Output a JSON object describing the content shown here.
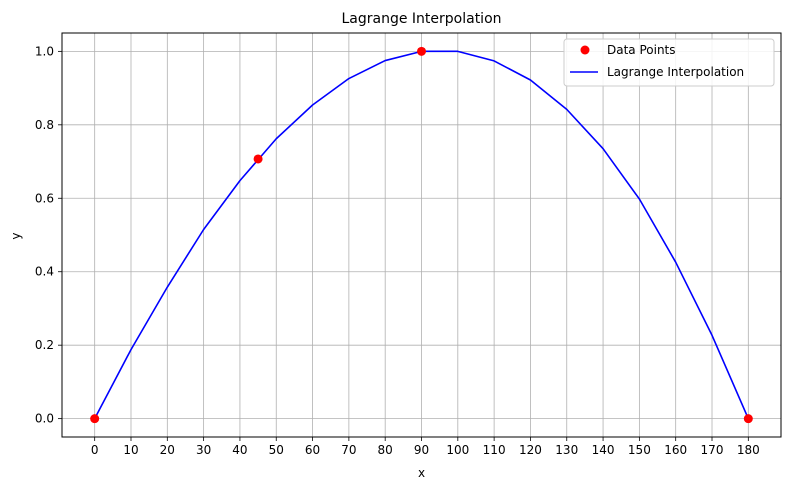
{
  "chart_data": {
    "type": "line",
    "title": "Lagrange Interpolation",
    "xlabel": "x",
    "ylabel": "y",
    "xlim": [
      -9,
      189
    ],
    "ylim": [
      -0.05,
      1.05
    ],
    "x_ticks": [
      0,
      10,
      20,
      30,
      40,
      50,
      60,
      70,
      80,
      90,
      100,
      110,
      120,
      130,
      140,
      150,
      160,
      170,
      180
    ],
    "y_ticks": [
      0.0,
      0.2,
      0.4,
      0.6,
      0.8,
      1.0
    ],
    "y_tick_labels": [
      "0.0",
      "0.2",
      "0.4",
      "0.6",
      "0.8",
      "1.0"
    ],
    "grid": true,
    "legend_position": "top-right",
    "series": [
      {
        "name": "Data Points",
        "kind": "scatter",
        "color": "#ff0000",
        "x": [
          0,
          45,
          90,
          180
        ],
        "y": [
          0.0,
          0.7071,
          1.0,
          0.0
        ]
      },
      {
        "name": "Lagrange Interpolation",
        "kind": "line",
        "color": "#0000ff",
        "x": [
          0,
          10,
          20,
          30,
          40,
          50,
          60,
          70,
          80,
          90,
          100,
          110,
          120,
          130,
          140,
          150,
          160,
          170,
          180
        ],
        "y": [
          0.0,
          0.188,
          0.358,
          0.515,
          0.648,
          0.762,
          0.854,
          0.926,
          0.975,
          1.0,
          1.0,
          0.974,
          0.922,
          0.842,
          0.735,
          0.598,
          0.426,
          0.227,
          0.0
        ]
      }
    ]
  }
}
